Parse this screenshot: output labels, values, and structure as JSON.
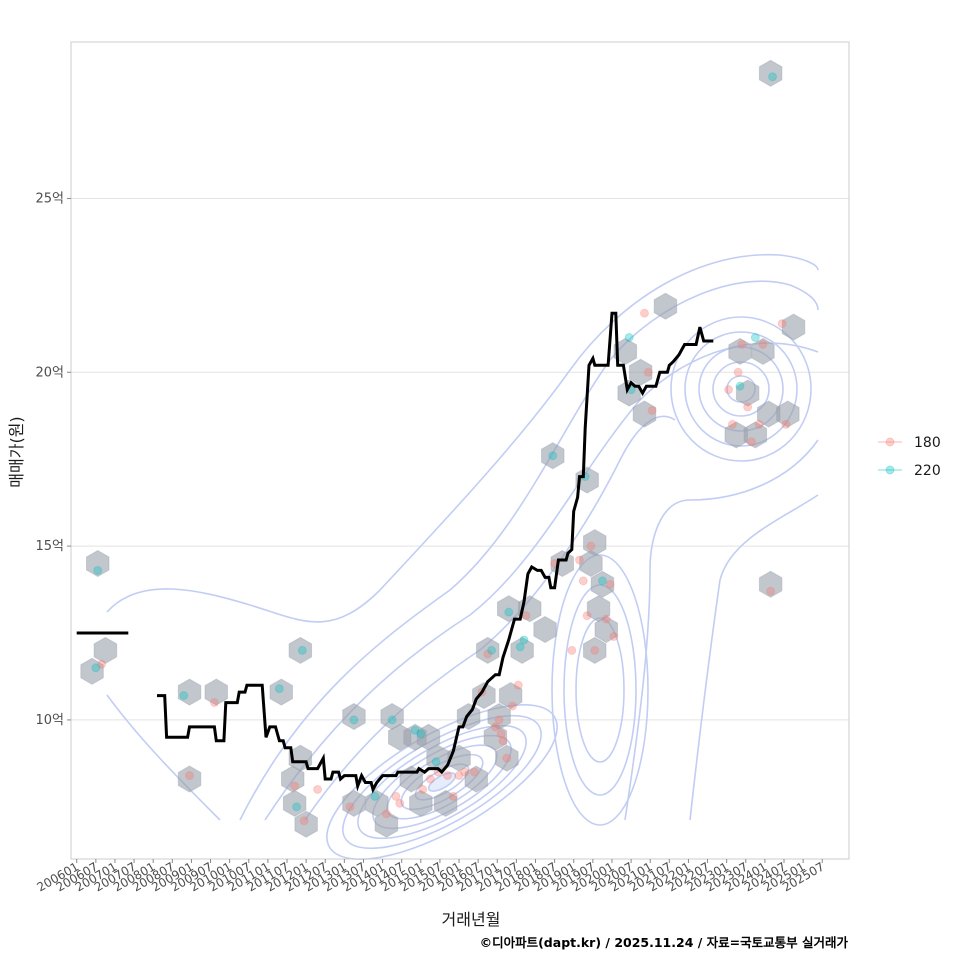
{
  "chart_data": {
    "type": "scatter",
    "xlabel": "거래년월",
    "ylabel": "매매가(원)",
    "caption": "©디아파트(dapt.kr) / 2025.11.24 / 자료=국토교통부 실거래가",
    "xlim": [
      2005.85,
      2026.2
    ],
    "ylim": [
      6.0,
      29.5
    ],
    "yticks": [
      10,
      15,
      20,
      25
    ],
    "ytick_labels": [
      "10억",
      "15억",
      "20억",
      "25억"
    ],
    "xticks": [
      2006.0,
      2006.5,
      2007.0,
      2007.5,
      2008.0,
      2008.5,
      2009.0,
      2009.5,
      2010.0,
      2010.5,
      2011.0,
      2011.5,
      2012.0,
      2012.5,
      2013.0,
      2013.5,
      2014.0,
      2014.5,
      2015.0,
      2015.5,
      2016.0,
      2016.5,
      2017.0,
      2017.5,
      2018.0,
      2018.5,
      2019.0,
      2019.5,
      2020.0,
      2020.5,
      2021.0,
      2021.5,
      2022.0,
      2022.5,
      2023.0,
      2023.5,
      2024.0,
      2024.5,
      2025.0,
      2025.5
    ],
    "xtick_labels": [
      "200601",
      "200607",
      "200701",
      "200707",
      "200801",
      "200807",
      "200901",
      "200907",
      "201001",
      "201007",
      "201101",
      "201107",
      "201201",
      "201207",
      "201301",
      "201307",
      "201401",
      "201407",
      "201501",
      "201507",
      "201601",
      "201607",
      "201701",
      "201707",
      "201801",
      "201807",
      "201901",
      "201907",
      "202001",
      "202007",
      "202101",
      "202107",
      "202201",
      "202207",
      "202301",
      "202307",
      "202401",
      "202407",
      "202501",
      "202507"
    ],
    "legend": {
      "position": "right",
      "entries": [
        {
          "label": "180",
          "color": "#F8766D"
        },
        {
          "label": "220",
          "color": "#00BFC4"
        }
      ]
    },
    "series": [
      {
        "name": "180",
        "color": "#F8766D",
        "points": [
          [
            2006.65,
            11.6
          ],
          [
            2008.95,
            8.4
          ],
          [
            2009.6,
            10.5
          ],
          [
            2011.7,
            8.1
          ],
          [
            2011.95,
            7.1
          ],
          [
            2012.3,
            8.0
          ],
          [
            2013.15,
            7.5
          ],
          [
            2014.1,
            7.3
          ],
          [
            2014.35,
            7.8
          ],
          [
            2014.45,
            7.6
          ],
          [
            2015.05,
            8.0
          ],
          [
            2015.25,
            8.3
          ],
          [
            2015.45,
            8.5
          ],
          [
            2015.7,
            8.4
          ],
          [
            2015.85,
            7.8
          ],
          [
            2016.0,
            8.4
          ],
          [
            2016.15,
            8.5
          ],
          [
            2016.4,
            8.5
          ],
          [
            2016.6,
            10.8
          ],
          [
            2016.75,
            11.9
          ],
          [
            2016.95,
            9.8
          ],
          [
            2017.05,
            10.0
          ],
          [
            2017.1,
            9.6
          ],
          [
            2017.15,
            9.4
          ],
          [
            2017.25,
            8.9
          ],
          [
            2017.4,
            10.4
          ],
          [
            2017.55,
            11.0
          ],
          [
            2017.75,
            13.0
          ],
          [
            2018.5,
            14.5
          ],
          [
            2018.95,
            12.0
          ],
          [
            2019.15,
            14.6
          ],
          [
            2019.25,
            14.0
          ],
          [
            2019.35,
            13.0
          ],
          [
            2019.45,
            15.0
          ],
          [
            2019.55,
            12.0
          ],
          [
            2019.85,
            12.9
          ],
          [
            2019.95,
            13.9
          ],
          [
            2020.05,
            12.4
          ],
          [
            2020.85,
            21.7
          ],
          [
            2020.95,
            20.0
          ],
          [
            2021.05,
            18.9
          ],
          [
            2023.05,
            19.5
          ],
          [
            2023.15,
            18.5
          ],
          [
            2023.3,
            20.0
          ],
          [
            2023.4,
            20.8
          ],
          [
            2023.55,
            19.0
          ],
          [
            2023.65,
            18.0
          ],
          [
            2023.85,
            18.5
          ],
          [
            2023.95,
            20.8
          ],
          [
            2024.15,
            13.7
          ],
          [
            2024.45,
            21.4
          ],
          [
            2024.55,
            18.5
          ]
        ]
      },
      {
        "name": "220",
        "color": "#00BFC4",
        "points": [
          [
            2006.5,
            11.5
          ],
          [
            2006.55,
            14.3
          ],
          [
            2008.8,
            10.7
          ],
          [
            2011.3,
            10.9
          ],
          [
            2011.75,
            7.5
          ],
          [
            2011.9,
            12.0
          ],
          [
            2013.25,
            10.0
          ],
          [
            2013.8,
            7.8
          ],
          [
            2014.25,
            10.0
          ],
          [
            2014.85,
            9.7
          ],
          [
            2015.0,
            9.6
          ],
          [
            2015.4,
            8.8
          ],
          [
            2016.85,
            12.0
          ],
          [
            2017.3,
            13.1
          ],
          [
            2017.6,
            12.1
          ],
          [
            2017.7,
            12.3
          ],
          [
            2018.45,
            17.6
          ],
          [
            2019.3,
            17.0
          ],
          [
            2019.75,
            14.0
          ],
          [
            2020.45,
            21.0
          ],
          [
            2020.5,
            19.5
          ],
          [
            2023.35,
            19.6
          ],
          [
            2023.75,
            21.0
          ],
          [
            2024.2,
            28.5
          ]
        ]
      }
    ],
    "hexbins": [
      [
        2006.55,
        14.5
      ],
      [
        2006.4,
        11.4
      ],
      [
        2006.75,
        12.0
      ],
      [
        2008.95,
        8.3
      ],
      [
        2008.95,
        10.8
      ],
      [
        2009.65,
        10.8
      ],
      [
        2011.35,
        10.8
      ],
      [
        2011.85,
        12.0
      ],
      [
        2011.65,
        8.3
      ],
      [
        2011.85,
        8.9
      ],
      [
        2011.7,
        7.6
      ],
      [
        2012.0,
        7.0
      ],
      [
        2013.25,
        10.1
      ],
      [
        2013.25,
        7.6
      ],
      [
        2013.85,
        7.6
      ],
      [
        2014.25,
        10.1
      ],
      [
        2014.1,
        7.0
      ],
      [
        2014.45,
        9.5
      ],
      [
        2014.85,
        9.5
      ],
      [
        2014.75,
        8.3
      ],
      [
        2015.2,
        9.5
      ],
      [
        2015.45,
        8.9
      ],
      [
        2015.0,
        7.6
      ],
      [
        2015.65,
        7.6
      ],
      [
        2016.25,
        10.1
      ],
      [
        2016.0,
        8.9
      ],
      [
        2016.45,
        8.3
      ],
      [
        2016.75,
        12.0
      ],
      [
        2016.65,
        10.7
      ],
      [
        2016.95,
        9.5
      ],
      [
        2017.05,
        10.1
      ],
      [
        2017.25,
        8.9
      ],
      [
        2017.35,
        10.7
      ],
      [
        2017.65,
        12.0
      ],
      [
        2017.3,
        13.2
      ],
      [
        2017.85,
        13.2
      ],
      [
        2018.25,
        12.6
      ],
      [
        2018.45,
        17.6
      ],
      [
        2018.7,
        14.5
      ],
      [
        2019.35,
        16.9
      ],
      [
        2019.55,
        15.1
      ],
      [
        2019.45,
        14.5
      ],
      [
        2019.55,
        12.0
      ],
      [
        2019.75,
        13.9
      ],
      [
        2019.85,
        12.6
      ],
      [
        2019.65,
        13.2
      ],
      [
        2020.35,
        20.6
      ],
      [
        2020.45,
        19.4
      ],
      [
        2020.75,
        20.0
      ],
      [
        2020.85,
        18.8
      ],
      [
        2021.4,
        21.9
      ],
      [
        2023.35,
        20.6
      ],
      [
        2023.55,
        19.4
      ],
      [
        2023.25,
        18.2
      ],
      [
        2023.75,
        18.2
      ],
      [
        2024.1,
        18.8
      ],
      [
        2023.95,
        20.6
      ],
      [
        2024.15,
        13.9
      ],
      [
        2024.15,
        28.6
      ],
      [
        2024.6,
        18.8
      ],
      [
        2024.75,
        21.3
      ]
    ],
    "median_line": [
      [
        [
          2006.0,
          12.5
        ],
        [
          2007.35,
          12.5
        ]
      ],
      [
        [
          2008.1,
          10.7
        ],
        [
          2008.3,
          10.7
        ],
        [
          2008.35,
          9.5
        ],
        [
          2008.9,
          9.5
        ],
        [
          2008.95,
          9.8
        ],
        [
          2009.6,
          9.8
        ],
        [
          2009.65,
          9.4
        ],
        [
          2009.85,
          9.4
        ],
        [
          2009.9,
          10.5
        ],
        [
          2010.2,
          10.5
        ],
        [
          2010.25,
          10.8
        ],
        [
          2010.4,
          10.8
        ],
        [
          2010.45,
          11.0
        ],
        [
          2010.85,
          11.0
        ],
        [
          2010.95,
          9.5
        ],
        [
          2011.05,
          9.8
        ],
        [
          2011.2,
          9.8
        ],
        [
          2011.3,
          9.4
        ],
        [
          2011.4,
          9.4
        ],
        [
          2011.45,
          9.2
        ],
        [
          2011.6,
          9.2
        ],
        [
          2011.65,
          8.8
        ],
        [
          2012.0,
          8.8
        ],
        [
          2012.05,
          8.6
        ],
        [
          2012.3,
          8.6
        ],
        [
          2012.45,
          8.9
        ],
        [
          2012.5,
          8.3
        ],
        [
          2012.65,
          8.3
        ],
        [
          2012.7,
          8.5
        ],
        [
          2012.85,
          8.5
        ],
        [
          2012.9,
          8.3
        ],
        [
          2013.0,
          8.4
        ],
        [
          2013.3,
          8.4
        ],
        [
          2013.35,
          8.1
        ],
        [
          2013.45,
          8.4
        ],
        [
          2013.55,
          8.2
        ],
        [
          2013.7,
          8.2
        ],
        [
          2013.75,
          8.0
        ],
        [
          2013.85,
          8.2
        ],
        [
          2014.0,
          8.4
        ],
        [
          2014.35,
          8.4
        ],
        [
          2014.4,
          8.5
        ],
        [
          2014.9,
          8.5
        ],
        [
          2014.95,
          8.6
        ],
        [
          2015.1,
          8.5
        ],
        [
          2015.2,
          8.6
        ],
        [
          2015.45,
          8.6
        ],
        [
          2015.55,
          8.5
        ],
        [
          2015.7,
          8.7
        ],
        [
          2015.85,
          9.1
        ],
        [
          2016.0,
          9.8
        ],
        [
          2016.1,
          9.8
        ],
        [
          2016.2,
          10.1
        ],
        [
          2016.35,
          10.3
        ],
        [
          2016.45,
          10.6
        ],
        [
          2016.6,
          10.8
        ],
        [
          2016.75,
          11.1
        ],
        [
          2016.95,
          11.3
        ],
        [
          2017.05,
          11.3
        ],
        [
          2017.15,
          11.8
        ],
        [
          2017.3,
          12.3
        ],
        [
          2017.45,
          12.9
        ],
        [
          2017.6,
          12.9
        ],
        [
          2017.7,
          13.4
        ],
        [
          2017.8,
          14.2
        ],
        [
          2017.9,
          14.4
        ],
        [
          2018.05,
          14.3
        ],
        [
          2018.15,
          14.3
        ],
        [
          2018.25,
          14.1
        ],
        [
          2018.35,
          14.1
        ],
        [
          2018.4,
          13.8
        ],
        [
          2018.5,
          13.8
        ],
        [
          2018.6,
          14.6
        ],
        [
          2018.8,
          14.6
        ],
        [
          2018.85,
          14.8
        ],
        [
          2018.95,
          14.9
        ],
        [
          2019.0,
          16.0
        ],
        [
          2019.1,
          16.4
        ],
        [
          2019.15,
          17.0
        ],
        [
          2019.25,
          17.0
        ],
        [
          2019.3,
          18.4
        ],
        [
          2019.4,
          20.2
        ],
        [
          2019.5,
          20.4
        ],
        [
          2019.55,
          20.2
        ],
        [
          2019.9,
          20.2
        ],
        [
          2020.0,
          21.7
        ],
        [
          2020.1,
          21.7
        ],
        [
          2020.15,
          20.2
        ],
        [
          2020.3,
          20.2
        ],
        [
          2020.4,
          19.5
        ],
        [
          2020.5,
          19.7
        ],
        [
          2020.6,
          19.6
        ],
        [
          2020.7,
          19.6
        ],
        [
          2020.8,
          19.4
        ],
        [
          2020.9,
          19.6
        ],
        [
          2021.15,
          19.6
        ],
        [
          2021.25,
          20.0
        ],
        [
          2021.45,
          20.0
        ],
        [
          2021.5,
          20.2
        ],
        [
          2021.6,
          20.3
        ],
        [
          2021.75,
          20.5
        ],
        [
          2021.9,
          20.8
        ],
        [
          2022.2,
          20.8
        ],
        [
          2022.3,
          21.3
        ],
        [
          2022.4,
          20.9
        ],
        [
          2022.65,
          20.9
        ]
      ]
    ]
  }
}
